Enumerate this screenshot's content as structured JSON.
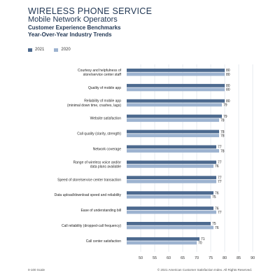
{
  "header": {
    "title_line1": "WIRELESS PHONE SERVICE",
    "title_line2": "Mobile Network Operators",
    "title_line3": "Customer Experience Benchmarks",
    "title_line4": "Year-Over-Year Industry Trends"
  },
  "footer": {
    "left": "0-100 Scale",
    "right": "© 2021 American Customer Satisfaction Index. All Rights Reserved."
  },
  "colors": {
    "series_2021": "#4d6a8f",
    "series_2020": "#9db3d0",
    "grid": "#cfd6df"
  },
  "chart_data": {
    "type": "bar",
    "orientation": "horizontal",
    "xlim": [
      45,
      90
    ],
    "x_ticks": [
      50,
      55,
      60,
      65,
      70,
      75,
      80,
      85,
      90
    ],
    "grid": true,
    "legend_position": "top-left",
    "categories": [
      [
        "Courtesy and helpfulness of",
        "store/service center staff"
      ],
      [
        "Quality of mobile app"
      ],
      [
        "Reliability of mobile app",
        "(minimal down time, crashes, lags)"
      ],
      [
        "Website satisfaction"
      ],
      [
        "Call quality (clarity, strength)"
      ],
      [
        "Network coverage"
      ],
      [
        "Range of wireless voice and/or",
        "data plans available"
      ],
      [
        "Speed of store/service center transaction"
      ],
      [
        "Data upload/download speed and reliability"
      ],
      [
        "Ease of understanding bill"
      ],
      [
        "Call reliability (dropped-call frequency)"
      ],
      [
        "Call center satisfaction"
      ]
    ],
    "series": [
      {
        "name": "2021",
        "values": [
          80,
          80,
          80,
          79,
          78,
          77,
          77,
          77,
          76,
          76,
          75,
          71
        ]
      },
      {
        "name": "2020",
        "values": [
          80,
          80,
          79,
          78,
          78,
          78,
          76,
          77,
          75,
          77,
          76,
          70
        ]
      }
    ]
  }
}
